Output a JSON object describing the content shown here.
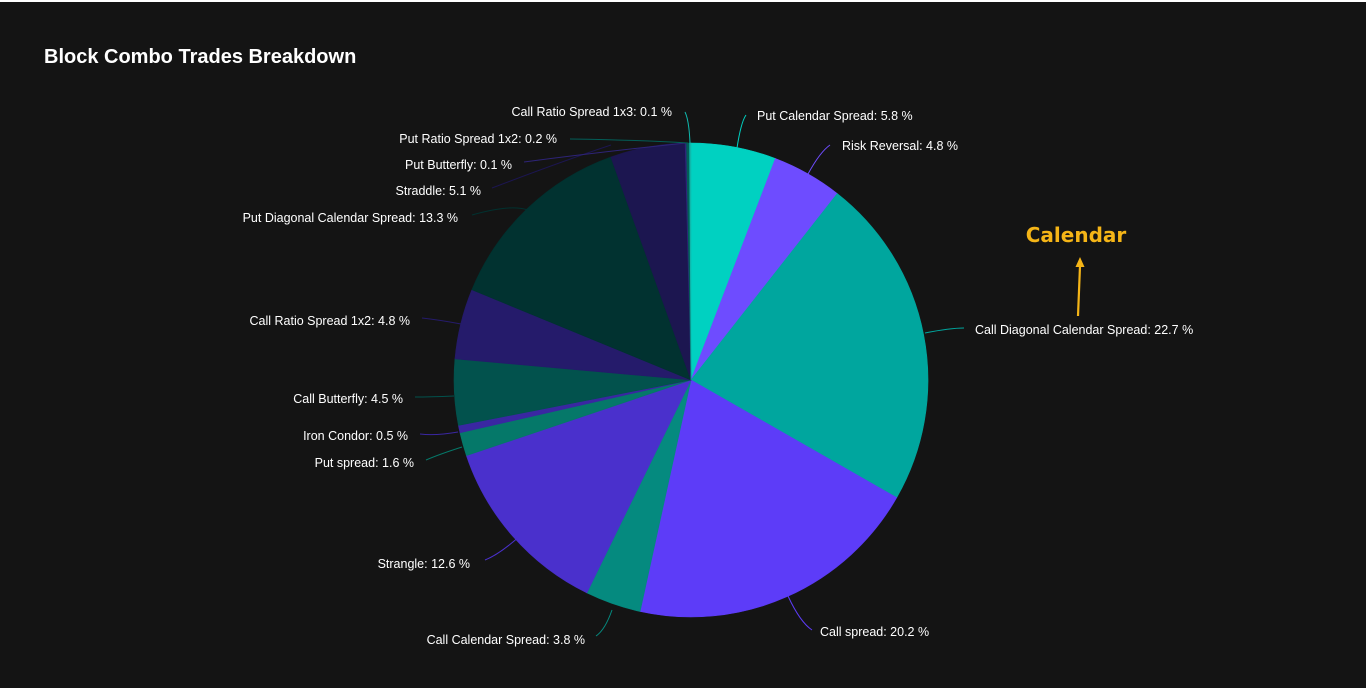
{
  "page": {
    "background": "#141414"
  },
  "chart_data": {
    "type": "pie",
    "title": "Block Combo Trades Breakdown",
    "start_angle_deg": 0,
    "direction": "clockwise",
    "slices": [
      {
        "label": "Put Calendar Spread",
        "value": 5.8,
        "display": "Put Calendar Spread: 5.8 %",
        "color": "#00d1c1"
      },
      {
        "label": "Risk Reversal",
        "value": 4.8,
        "display": "Risk Reversal: 4.8 %",
        "color": "#6e4cff"
      },
      {
        "label": "Call Diagonal Calendar Spread",
        "value": 22.7,
        "display": "Call Diagonal Calendar Spread: 22.7 %",
        "color": "#00a69e"
      },
      {
        "label": "Call spread",
        "value": 20.2,
        "display": "Call spread: 20.2 %",
        "color": "#5d3cf8"
      },
      {
        "label": "Call Calendar Spread",
        "value": 3.8,
        "display": "Call Calendar Spread: 3.8 %",
        "color": "#058a7f"
      },
      {
        "label": "Strangle",
        "value": 12.6,
        "display": "Strangle: 12.6 %",
        "color": "#4a30cc"
      },
      {
        "label": "Put spread",
        "value": 1.6,
        "display": "Put spread: 1.6 %",
        "color": "#057869"
      },
      {
        "label": "Iron Condor",
        "value": 0.5,
        "display": "Iron Condor: 0.5 %",
        "color": "#3a27a2"
      },
      {
        "label": "Call Butterfly",
        "value": 4.5,
        "display": "Call Butterfly: 4.5 %",
        "color": "#02524d"
      },
      {
        "label": "Call Ratio Spread 1x2",
        "value": 4.8,
        "display": "Call Ratio Spread 1x2: 4.8 %",
        "color": "#251b6b"
      },
      {
        "label": "Put Diagonal Calendar Spread",
        "value": 13.3,
        "display": "Put Diagonal Calendar Spread: 13.3 %",
        "color": "#013230"
      },
      {
        "label": "Straddle",
        "value": 5.1,
        "display": "Straddle: 5.1 %",
        "color": "#1c1650"
      },
      {
        "label": "Put Butterfly",
        "value": 0.1,
        "display": "Put Butterfly: 0.1 %",
        "color": "#2e2478"
      },
      {
        "label": "Put Ratio Spread 1x2",
        "value": 0.2,
        "display": "Put Ratio Spread 1x2: 0.2 %",
        "color": "#035e58"
      },
      {
        "label": "Call Ratio Spread 1x3",
        "value": 0.1,
        "display": "Call Ratio Spread 1x3: 0.1 %",
        "color": "#0fb8ad"
      }
    ],
    "annotation": {
      "text": "Calendar",
      "color": "#f5b517",
      "target_slice": "Call Diagonal Calendar Spread"
    },
    "legend": "none"
  }
}
